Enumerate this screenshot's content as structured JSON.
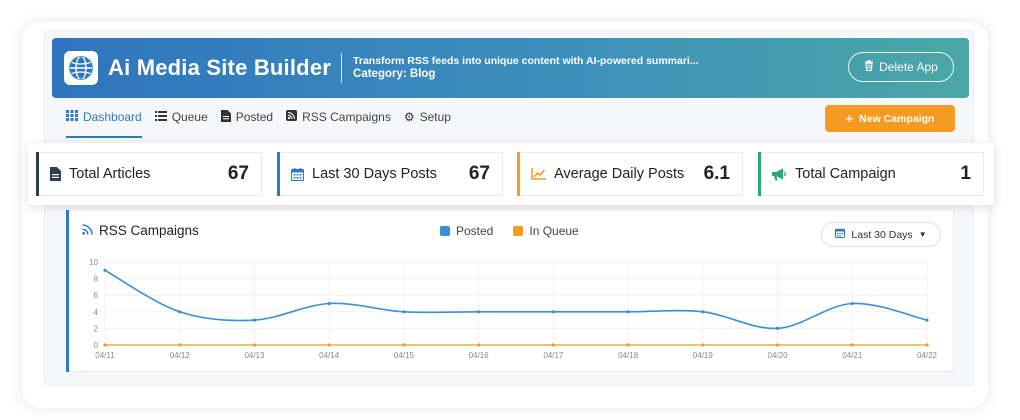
{
  "header": {
    "app_title": "Ai Media Site Builder",
    "description": "Transform RSS feeds into unique content with AI-powered summari...",
    "category": "Category: Blog",
    "delete_label": "Delete App"
  },
  "nav": {
    "tabs": [
      {
        "label": "Dashboard",
        "icon": "grid-icon",
        "active": true
      },
      {
        "label": "Queue",
        "icon": "list-icon",
        "active": false
      },
      {
        "label": "Posted",
        "icon": "document-icon",
        "active": false
      },
      {
        "label": "RSS Campaigns",
        "icon": "rss-icon",
        "active": false
      },
      {
        "label": "Setup",
        "icon": "gear-icon",
        "active": false
      }
    ],
    "new_campaign_label": "New Campaign"
  },
  "stats": [
    {
      "label": "Total Articles",
      "value": "67",
      "icon": "document-icon",
      "color": "#2d3e50"
    },
    {
      "label": "Last 30 Days Posts",
      "value": "67",
      "icon": "calendar-icon",
      "color": "#2f7ac6"
    },
    {
      "label": "Average Daily Posts",
      "value": "6.1",
      "icon": "line-chart-icon",
      "color": "#f59a23"
    },
    {
      "label": "Total Campaign",
      "value": "1",
      "icon": "megaphone-icon",
      "color": "#2aa876"
    }
  ],
  "chart_panel": {
    "title": "RSS Campaigns",
    "range_label": "Last 30 Days"
  },
  "chart_data": {
    "type": "line",
    "title": "RSS Campaigns",
    "x": [
      "04/11",
      "04/12",
      "04/13",
      "04/14",
      "04/15",
      "04/16",
      "04/17",
      "04/18",
      "04/19",
      "04/20",
      "04/21",
      "04/22"
    ],
    "yticks": [
      0,
      2,
      4,
      6,
      8,
      10
    ],
    "ylim": [
      0,
      10
    ],
    "grid": true,
    "legend_position": "top-center",
    "series": [
      {
        "name": "Posted",
        "color": "#3a8fd6",
        "values": [
          9,
          4,
          3,
          5,
          4,
          4,
          4,
          4,
          4,
          2,
          5,
          3
        ]
      },
      {
        "name": "In Queue",
        "color": "#f59a23",
        "values": [
          0,
          0,
          0,
          0,
          0,
          0,
          0,
          0,
          0,
          0,
          0,
          0
        ]
      }
    ]
  }
}
